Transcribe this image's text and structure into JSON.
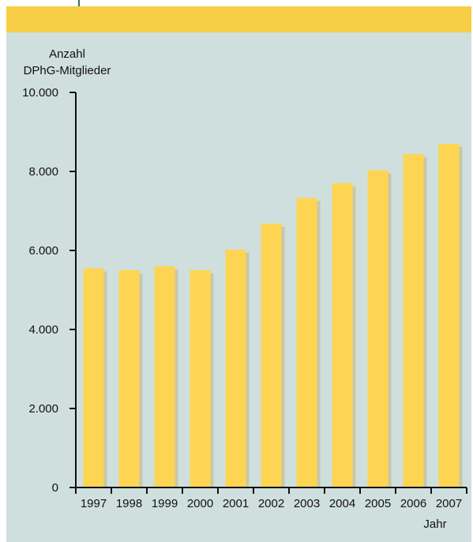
{
  "colors": {
    "band": "#f6cf47",
    "panel": "#cfdfdd",
    "bar": "#fdd552",
    "bar_shadow": "#c6b37a",
    "axis": "#111111",
    "guide_line": "#3d6b5a"
  },
  "chart_data": {
    "type": "bar",
    "ylabel_line1": "Anzahl",
    "ylabel_line2": "DPhG-Mitglieder",
    "xlabel": "Jahr",
    "categories": [
      "1997",
      "1998",
      "1999",
      "2000",
      "2001",
      "2002",
      "2003",
      "2004",
      "2005",
      "2006",
      "2007"
    ],
    "values": [
      5550,
      5500,
      5600,
      5500,
      6020,
      6680,
      7330,
      7700,
      8030,
      8440,
      8700
    ],
    "ylim": [
      0,
      10000
    ],
    "yticks": [
      0,
      2000,
      4000,
      6000,
      8000,
      10000
    ],
    "ytick_labels": [
      "0",
      "2.000",
      "4.000",
      "6.000",
      "8.000",
      "10.000"
    ],
    "grid": false,
    "legend": "none"
  }
}
